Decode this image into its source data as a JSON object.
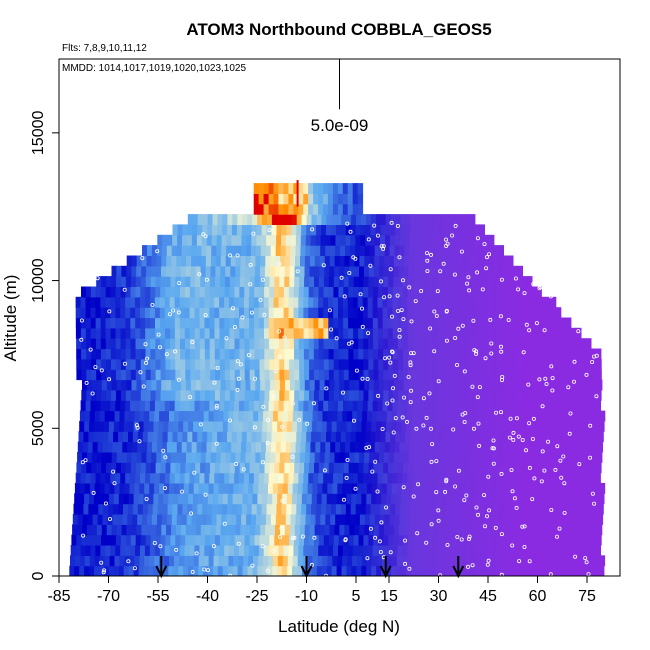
{
  "chart_data": {
    "type": "heatmap",
    "title": "ATOM3 Northbound COBBLA_GEOS5",
    "subtitle_flights": "Flts: 7,8,9,10,11,12",
    "subtitle_dates": "MMDD: 1014,1017,1019,1020,1023,1025",
    "xlabel": "Latitude (deg N)",
    "ylabel": "Altitude (m)",
    "xlim": [
      -85,
      85
    ],
    "ylim": [
      0,
      17500
    ],
    "x_ticks": [
      -85,
      -70,
      -55,
      -40,
      -25,
      -10,
      5,
      15,
      30,
      45,
      60,
      75
    ],
    "x_tick_labels": [
      "-85",
      "-70",
      "-55",
      "-40",
      "-25",
      "-10",
      "5",
      "15",
      "30",
      "45",
      "60",
      "75"
    ],
    "y_ticks": [
      0,
      5000,
      10000,
      15000
    ],
    "y_tick_labels": [
      "0",
      "5000",
      "10000",
      "15000"
    ],
    "scale_label": "5.0e-09",
    "scale_bar": {
      "x": 0,
      "y_bottom": 15800,
      "y_top": 17500
    },
    "arrow_latitudes": [
      -54,
      -10,
      14,
      36
    ],
    "colors": {
      "low": "#0000c8",
      "mid": "#5aa8f0",
      "high_light": "#fffbd0",
      "peak": "#ff8c00",
      "max": "#e00000",
      "north_purple": "#8a2be2"
    }
  }
}
